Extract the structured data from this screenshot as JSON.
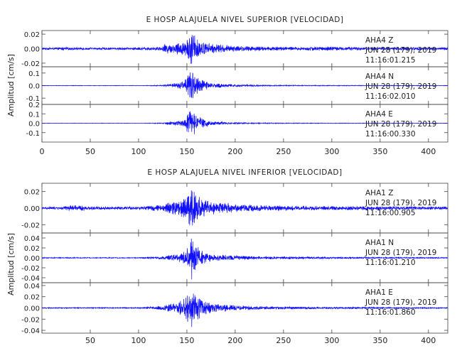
{
  "chart_data": [
    {
      "type": "line",
      "title": "E HOSP ALAJUELA NIVEL SUPERIOR [VELOCIDAD]",
      "ylabel": "Amplitud [cm/s]",
      "xlim": [
        0,
        420
      ],
      "x_ticks": [
        "0",
        "50",
        "100",
        "150",
        "200",
        "250",
        "300",
        "350",
        "400"
      ],
      "series": [
        {
          "name": "AHA4 Z",
          "component": "Z",
          "station": "AHA4",
          "date": "JUN 28 (179), 2019",
          "time": "11:16:01.215",
          "ylim": [
            -0.025,
            0.025
          ],
          "y_ticks": [
            "0.02",
            "0.00",
            "-0.02"
          ],
          "envelope": {
            "t": [
              0,
              25,
              60,
              100,
              125,
              126,
              135,
              145,
              150,
              155,
              158,
              165,
              175,
              200,
              230,
              260,
              290,
              320,
              350,
              380,
              420
            ],
            "amp": [
              0.0015,
              0.002,
              0.0015,
              0.002,
              0.003,
              0.008,
              0.007,
              0.01,
              0.018,
              0.025,
              0.02,
              0.012,
              0.007,
              0.004,
              0.003,
              0.0025,
              0.003,
              0.0025,
              0.002,
              0.0022,
              0.002
            ]
          }
        },
        {
          "name": "AHA4 N",
          "component": "N",
          "station": "AHA4",
          "date": "JUN 28 (179), 2019",
          "time": "11:16:02.010",
          "ylim": [
            -0.15,
            0.15
          ],
          "y_ticks": [
            "0.1",
            "0.0",
            "-0.1"
          ],
          "envelope": {
            "t": [
              0,
              100,
              125,
              130,
              145,
              150,
              155,
              158,
              165,
              175,
              200,
              230,
              300,
              420
            ],
            "amp": [
              0.002,
              0.002,
              0.004,
              0.012,
              0.03,
              0.07,
              0.14,
              0.1,
              0.05,
              0.02,
              0.01,
              0.005,
              0.003,
              0.002
            ]
          }
        },
        {
          "name": "AHA4 E",
          "component": "E",
          "station": "AHA4",
          "date": "JUN 28 (179), 2019",
          "time": "11:16:00.330",
          "ylim": [
            -0.2,
            0.2
          ],
          "y_ticks": [
            "0.2",
            "0.1",
            "0.0",
            "-0.1"
          ],
          "envelope": {
            "t": [
              0,
              100,
              125,
              130,
              145,
              150,
              155,
              158,
              165,
              175,
              200,
              230,
              300,
              420
            ],
            "amp": [
              0.002,
              0.002,
              0.005,
              0.015,
              0.04,
              0.09,
              0.17,
              0.12,
              0.06,
              0.025,
              0.01,
              0.005,
              0.003,
              0.002
            ]
          }
        }
      ]
    },
    {
      "type": "line",
      "title": "E HOSP ALAJUELA NIVEL INFERIOR [VELOCIDAD]",
      "ylabel": "Amplitud [cm/s]",
      "xlim": [
        0,
        420
      ],
      "x_ticks": [
        "",
        "50",
        "100",
        "150",
        "200",
        "250",
        "300",
        "350",
        "400"
      ],
      "series": [
        {
          "name": "AHA1 Z",
          "component": "Z",
          "station": "AHA1",
          "date": "JUN 28 (179), 2019",
          "time": "11:16:00.905",
          "ylim": [
            -0.03,
            0.03
          ],
          "y_ticks": [
            "0.02",
            "0.00",
            "-0.02"
          ],
          "envelope": {
            "t": [
              0,
              20,
              30,
              60,
              100,
              125,
              130,
              140,
              150,
              155,
              158,
              165,
              175,
              200,
              230,
              260,
              300,
              340,
              380,
              420
            ],
            "amp": [
              0.0015,
              0.002,
              0.004,
              0.002,
              0.002,
              0.004,
              0.008,
              0.009,
              0.015,
              0.027,
              0.02,
              0.013,
              0.008,
              0.005,
              0.0035,
              0.003,
              0.0025,
              0.0025,
              0.002,
              0.002
            ]
          }
        },
        {
          "name": "AHA1 N",
          "component": "N",
          "station": "AHA1",
          "date": "JUN 28 (179), 2019",
          "time": "11:16:01.210",
          "ylim": [
            -0.05,
            0.05
          ],
          "y_ticks": [
            "0.04",
            "0.02",
            "0.00",
            "-0.02",
            "-0.04"
          ],
          "envelope": {
            "t": [
              0,
              100,
              125,
              130,
              145,
              150,
              155,
              158,
              165,
              175,
              200,
              230,
              300,
              420
            ],
            "amp": [
              0.001,
              0.001,
              0.003,
              0.006,
              0.01,
              0.02,
              0.045,
              0.03,
              0.015,
              0.008,
              0.005,
              0.003,
              0.002,
              0.001
            ]
          }
        },
        {
          "name": "AHA1 E",
          "component": "E",
          "station": "AHA1",
          "date": "JUN 28 (179), 2019",
          "time": "11:16:01.860",
          "ylim": [
            -0.045,
            0.045
          ],
          "y_ticks": [
            "0.04",
            "0.02",
            "0.00",
            "-0.02",
            "-0.04"
          ],
          "envelope": {
            "t": [
              0,
              100,
              125,
              130,
              140,
              150,
              155,
              158,
              165,
              175,
              200,
              230,
              300,
              420
            ],
            "amp": [
              0.001,
              0.001,
              0.004,
              0.008,
              0.01,
              0.022,
              0.042,
              0.03,
              0.016,
              0.009,
              0.005,
              0.003,
              0.002,
              0.001
            ]
          }
        }
      ]
    }
  ],
  "colors": {
    "trace": "#1010ff",
    "axes": "#444444",
    "text": "#222222"
  }
}
